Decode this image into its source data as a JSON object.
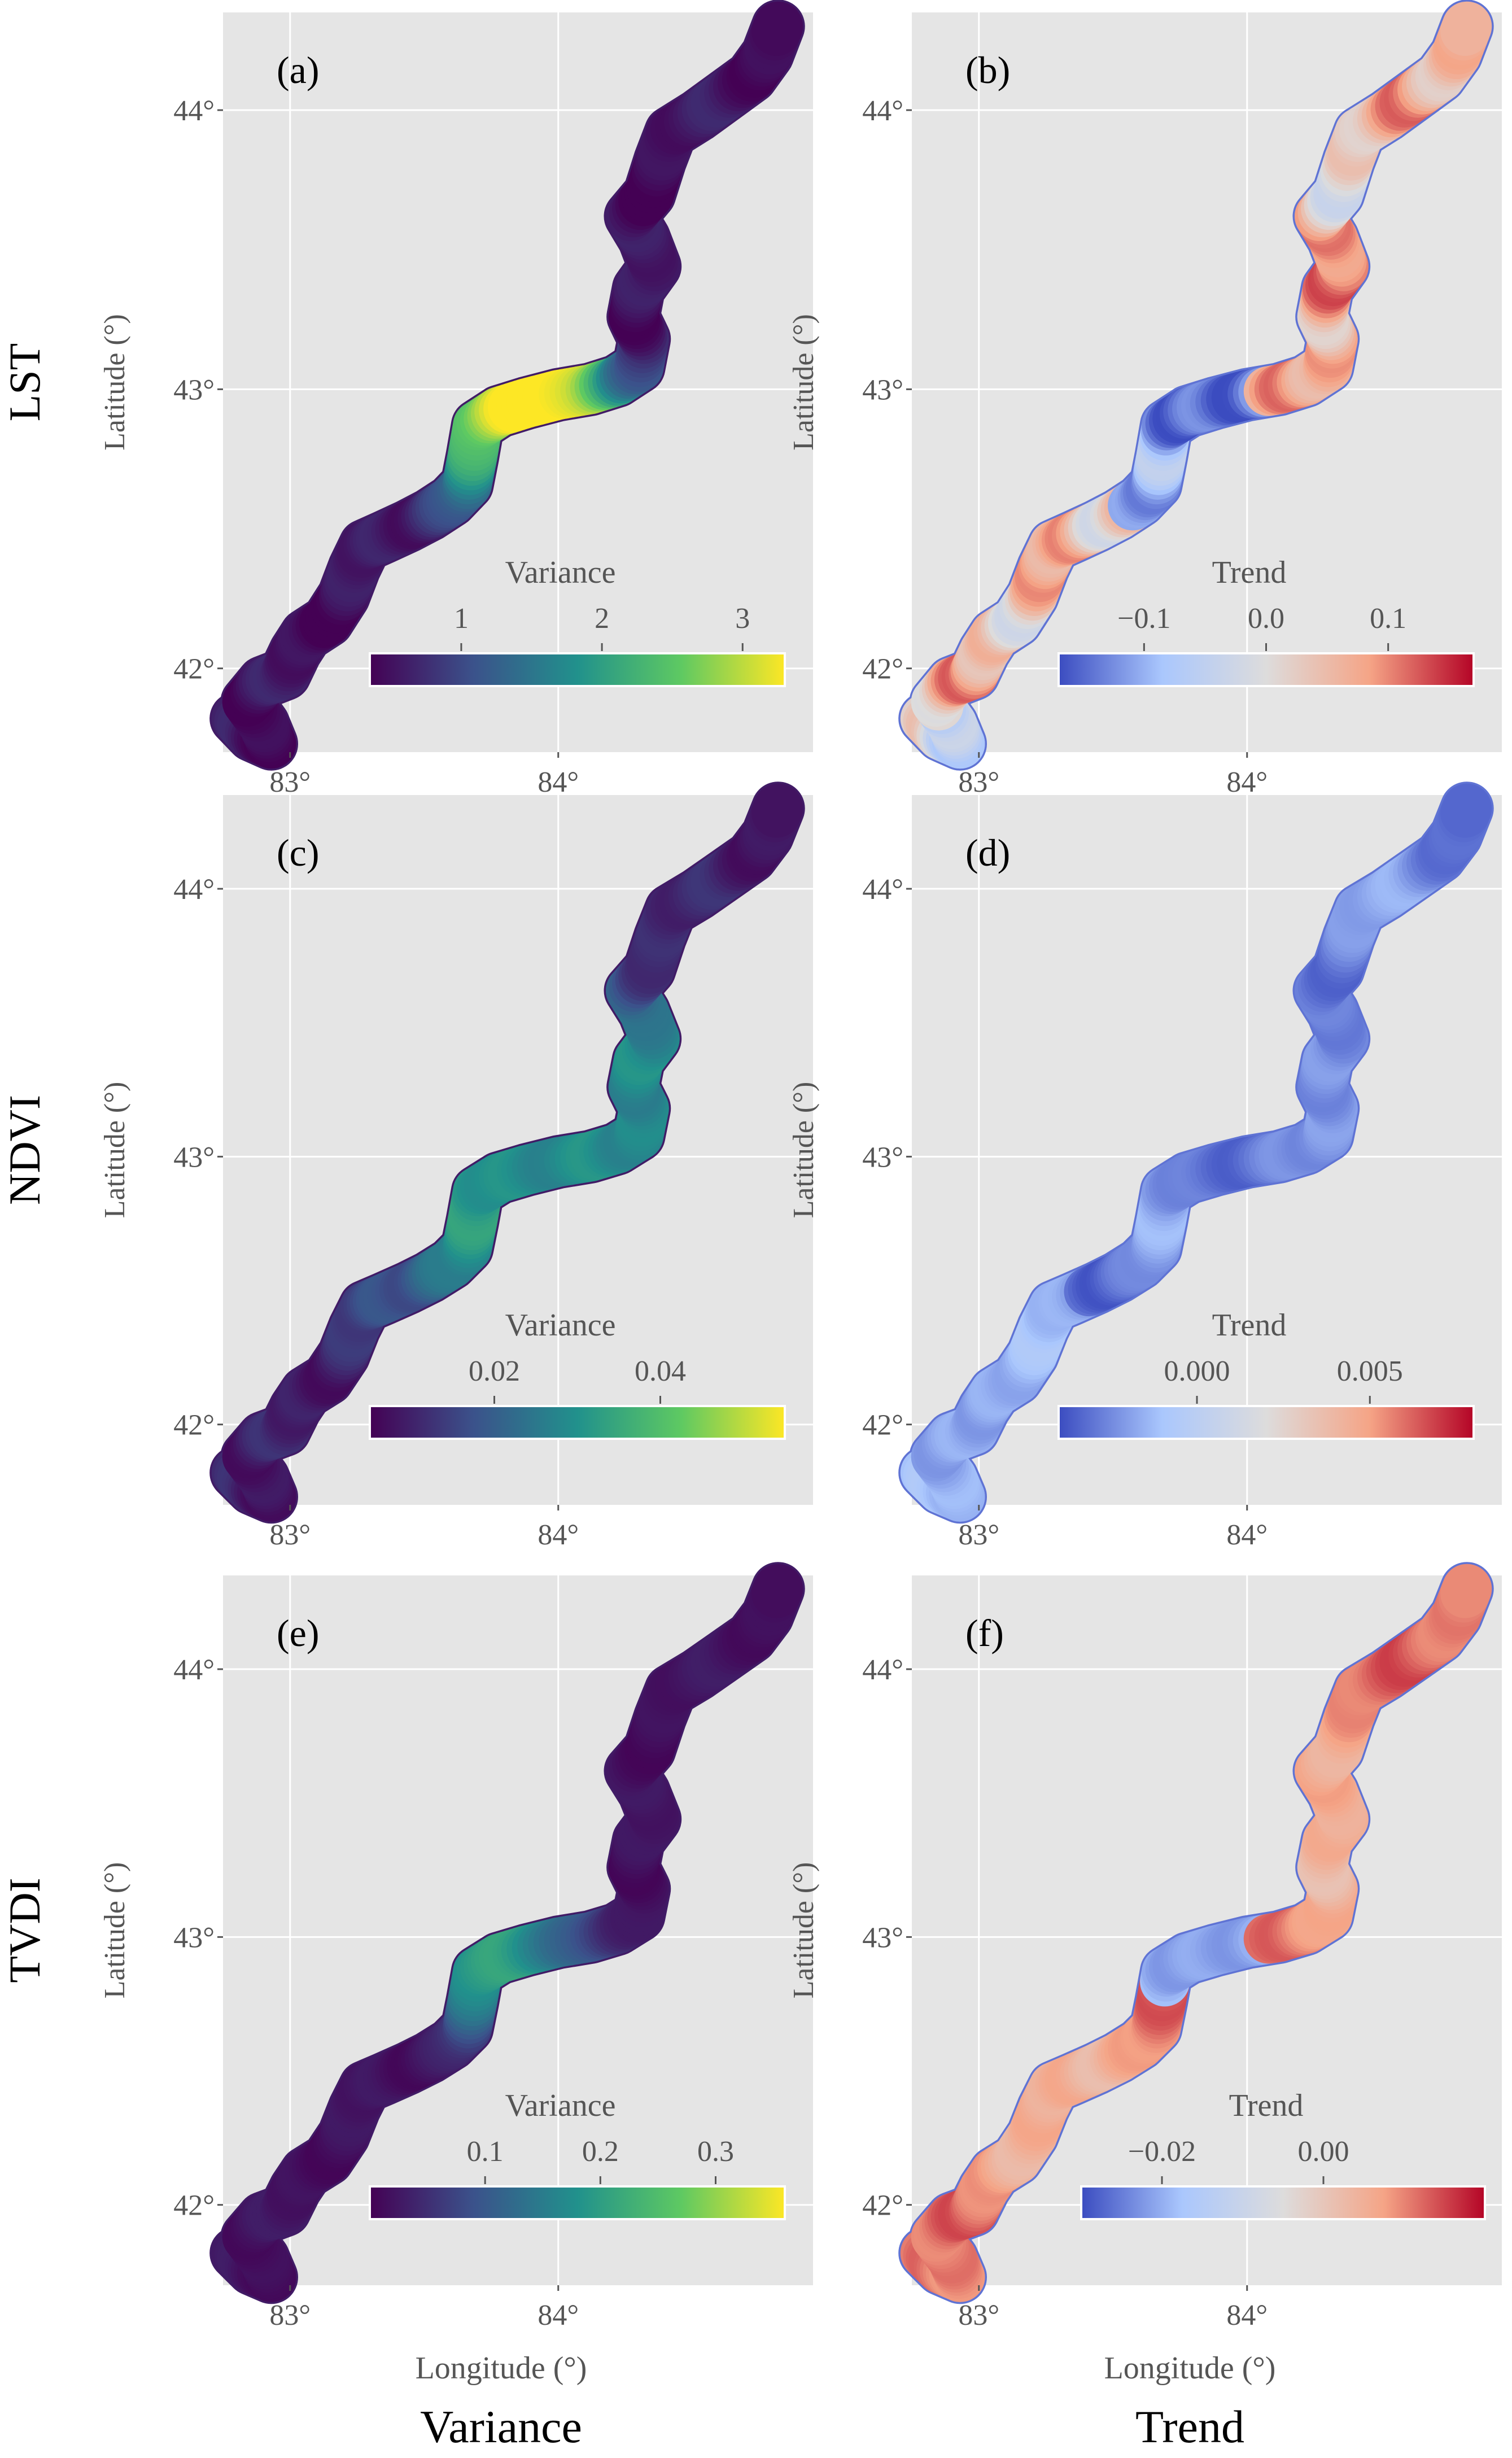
{
  "rows": [
    {
      "name": "LST",
      "label": "LST"
    },
    {
      "name": "NDVI",
      "label": "NDVI"
    },
    {
      "name": "TVDI",
      "label": "TVDI"
    }
  ],
  "columns": [
    {
      "name": "variance",
      "footer": "Variance"
    },
    {
      "name": "trend",
      "footer": "Trend"
    }
  ],
  "axes": {
    "ylabel": "Latitude (°)",
    "xlabel": "Longitude (°)",
    "lat_ticks": [
      "44°",
      "43°",
      "42°"
    ],
    "lon_ticks": [
      "83°",
      "84°"
    ],
    "lat_range": [
      41.7,
      44.35
    ],
    "lon_range": [
      82.75,
      84.95
    ]
  },
  "panels": [
    {
      "id": "a",
      "label": "(a)",
      "scheme": "viridis",
      "legend_title": "Variance",
      "ticks": [
        "1",
        "2",
        "3"
      ],
      "tick_values": [
        1,
        2,
        3
      ],
      "range": [
        0.35,
        3.3
      ],
      "emphasis": "mid-hot"
    },
    {
      "id": "b",
      "label": "(b)",
      "scheme": "coolwarm",
      "legend_title": "Trend",
      "ticks": [
        "−0.1",
        "0.0",
        "0.1"
      ],
      "tick_values": [
        -0.1,
        0.0,
        0.1
      ],
      "range": [
        -0.17,
        0.17
      ],
      "emphasis": "lst-trend"
    },
    {
      "id": "c",
      "label": "(c)",
      "scheme": "viridis",
      "legend_title": "Variance",
      "ticks": [
        "0.02",
        "0.04"
      ],
      "tick_values": [
        0.02,
        0.04
      ],
      "range": [
        0.005,
        0.055
      ],
      "emphasis": "ndvi-var"
    },
    {
      "id": "d",
      "label": "(d)",
      "scheme": "coolwarm",
      "legend_title": "Trend",
      "ticks": [
        "0.000",
        "0.005"
      ],
      "tick_values": [
        0.0,
        0.005
      ],
      "range": [
        -0.004,
        0.008
      ],
      "emphasis": "ndvi-trend"
    },
    {
      "id": "e",
      "label": "(e)",
      "scheme": "viridis",
      "legend_title": "Variance",
      "ticks": [
        "0.1",
        "0.2",
        "0.3"
      ],
      "tick_values": [
        0.1,
        0.2,
        0.3
      ],
      "range": [
        0.0,
        0.36
      ],
      "emphasis": "tvdi-var"
    },
    {
      "id": "f",
      "label": "(f)",
      "scheme": "coolwarm",
      "legend_title": "Trend",
      "ticks": [
        "−0.02",
        "0.00"
      ],
      "tick_values": [
        -0.02,
        0.0
      ],
      "range": [
        -0.03,
        0.02
      ],
      "emphasis": "tvdi-trend"
    }
  ],
  "colors": {
    "panel_bg": "#e5e5e5",
    "grid": "#ffffff",
    "tick_text": "#555555",
    "viridis": [
      "#440154",
      "#3b528b",
      "#21918c",
      "#5ec962",
      "#fde725"
    ],
    "coolwarm": [
      "#3b4cc0",
      "#aac7fd",
      "#dddcdc",
      "#f5a486",
      "#b40426"
    ]
  }
}
